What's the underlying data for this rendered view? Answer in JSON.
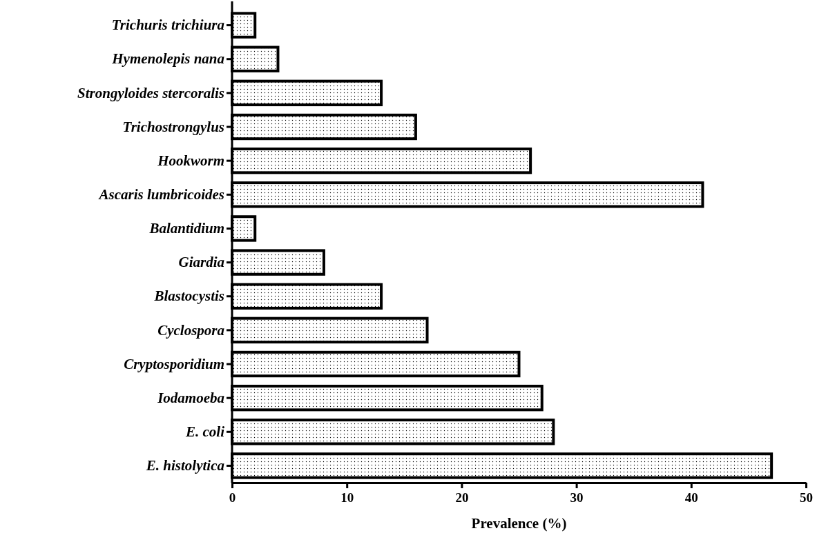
{
  "chart_data": {
    "type": "bar",
    "orientation": "horizontal",
    "xlabel": "Prevalence (%)",
    "categories": [
      "Trichuris trichiura",
      "Hymenolepis nana",
      "Strongyloides stercoralis",
      "Trichostrongylus",
      "Hookworm",
      "Ascaris lumbricoides",
      "Balantidium",
      "Giardia",
      "Blastocystis",
      "Cyclospora",
      "Cryptosporidium",
      "Iodamoeba",
      "E. coli",
      "E. histolytica"
    ],
    "values": [
      2,
      4,
      13,
      16,
      26,
      41,
      2,
      8,
      13,
      17,
      25,
      27,
      28,
      47
    ],
    "color": "#000000",
    "xlim": [
      0,
      50
    ],
    "xticks": [
      0,
      10,
      20,
      30,
      40,
      50
    ],
    "grid": false
  }
}
